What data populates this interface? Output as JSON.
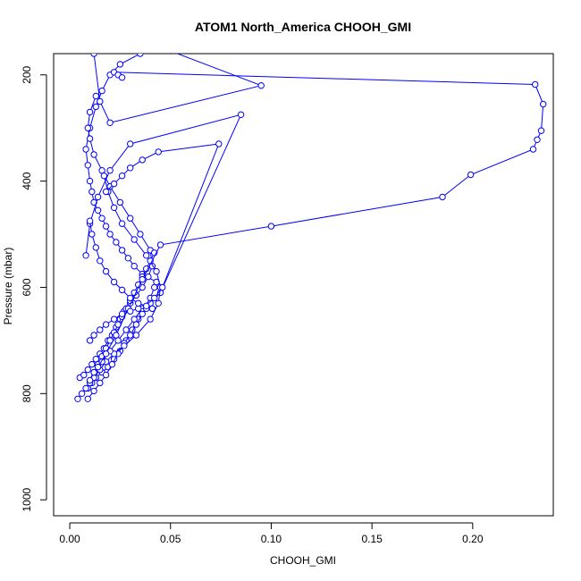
{
  "chart_data": {
    "type": "line",
    "title": "ATOM1 North_America CHOOH_GMI",
    "xlabel": "CHOOH_GMI",
    "ylabel": "Pressure (mbar)",
    "xlim": [
      -0.008,
      0.24
    ],
    "ylim": [
      1030,
      160
    ],
    "y_inverted": true,
    "x_ticks": [
      0.0,
      0.05,
      0.1,
      0.15,
      0.2
    ],
    "x_tick_labels": [
      "0.00",
      "0.05",
      "0.10",
      "0.15",
      "0.20"
    ],
    "y_ticks": [
      200,
      400,
      600,
      800,
      1000
    ],
    "y_tick_labels": [
      "200",
      "400",
      "600",
      "800",
      "1000"
    ],
    "grid": false,
    "legend": "none",
    "marker": "open-circle",
    "color": "#0000ff",
    "series": [
      {
        "x": [
          0.004,
          0.006,
          0.009,
          0.011,
          0.013,
          0.016,
          0.019,
          0.022,
          0.025,
          0.028,
          0.031,
          0.034,
          0.037,
          0.04,
          0.042,
          0.043,
          0.036,
          0.032,
          0.029,
          0.026,
          0.023,
          0.02,
          0.018,
          0.016,
          0.014,
          0.012,
          0.011,
          0.01,
          0.009,
          0.008,
          0.01,
          0.013,
          0.016,
          0.02,
          0.025,
          0.035,
          0.05,
          0.095,
          0.02,
          0.015,
          0.012
        ],
        "y": [
          810,
          800,
          790,
          780,
          770,
          760,
          750,
          735,
          720,
          700,
          680,
          660,
          640,
          620,
          600,
          590,
          575,
          560,
          545,
          530,
          515,
          500,
          485,
          470,
          455,
          440,
          420,
          400,
          370,
          340,
          300,
          260,
          230,
          200,
          180,
          160,
          155,
          220,
          290,
          250,
          160
        ]
      },
      {
        "x": [
          0.009,
          0.012,
          0.015,
          0.018,
          0.021,
          0.024,
          0.027,
          0.03,
          0.033,
          0.036,
          0.04,
          0.045,
          0.085,
          0.03,
          0.02,
          0.014,
          0.01,
          0.008
        ],
        "y": [
          810,
          795,
          780,
          765,
          745,
          725,
          705,
          690,
          670,
          650,
          630,
          610,
          275,
          330,
          380,
          430,
          480,
          540
        ]
      },
      {
        "x": [
          0.005,
          0.007,
          0.009,
          0.011,
          0.013,
          0.015,
          0.017,
          0.019,
          0.021,
          0.023,
          0.025,
          0.027,
          0.03,
          0.033,
          0.036,
          0.039,
          0.041,
          0.04,
          0.035,
          0.03,
          0.025,
          0.02,
          0.016,
          0.012,
          0.01,
          0.009,
          0.01,
          0.013
        ],
        "y": [
          770,
          765,
          755,
          745,
          735,
          725,
          715,
          700,
          690,
          675,
          660,
          645,
          630,
          615,
          600,
          580,
          560,
          530,
          500,
          470,
          440,
          410,
          380,
          350,
          320,
          300,
          270,
          240
        ]
      },
      {
        "x": [
          0.008,
          0.01,
          0.012,
          0.015,
          0.018,
          0.022,
          0.027,
          0.033,
          0.04,
          0.044,
          0.045,
          0.043,
          0.038,
          0.032,
          0.026,
          0.022,
          0.019,
          0.017
        ],
        "y": [
          790,
          780,
          770,
          755,
          740,
          725,
          710,
          690,
          660,
          630,
          600,
          570,
          540,
          510,
          480,
          450,
          420,
          390
        ]
      },
      {
        "x": [
          0.01,
          0.012,
          0.014,
          0.016,
          0.018,
          0.02,
          0.022,
          0.024,
          0.026,
          0.028,
          0.03,
          0.032,
          0.034,
          0.036,
          0.038,
          0.04,
          0.042
        ],
        "y": [
          775,
          760,
          745,
          730,
          715,
          700,
          685,
          670,
          655,
          640,
          625,
          610,
          595,
          580,
          565,
          550,
          535
        ]
      },
      {
        "x": [
          0.012,
          0.016,
          0.02,
          0.024,
          0.028,
          0.032,
          0.036,
          0.042,
          0.046,
          0.074,
          0.044,
          0.036,
          0.03,
          0.026,
          0.022,
          0.018
        ],
        "y": [
          760,
          740,
          720,
          700,
          680,
          660,
          640,
          620,
          600,
          330,
          345,
          360,
          375,
          390,
          405,
          420
        ]
      },
      {
        "x": [
          0.014,
          0.018,
          0.023,
          0.029,
          0.036,
          0.045,
          0.1,
          0.185,
          0.199,
          0.23,
          0.232,
          0.234,
          0.235,
          0.231,
          0.022,
          0.024,
          0.026
        ],
        "y": [
          750,
          725,
          690,
          640,
          585,
          520,
          485,
          430,
          388,
          340,
          322,
          305,
          255,
          218,
          195,
          200,
          205
        ]
      },
      {
        "x": [
          0.01,
          0.012,
          0.015,
          0.018,
          0.022,
          0.026,
          0.03,
          0.034,
          0.038,
          0.041,
          0.041,
          0.038,
          0.034,
          0.03,
          0.026,
          0.022,
          0.018,
          0.015,
          0.013,
          0.011,
          0.01
        ],
        "y": [
          700,
          690,
          680,
          670,
          660,
          650,
          645,
          640,
          640,
          640,
          640,
          635,
          630,
          620,
          605,
          590,
          570,
          550,
          525,
          500,
          475
        ]
      }
    ]
  }
}
